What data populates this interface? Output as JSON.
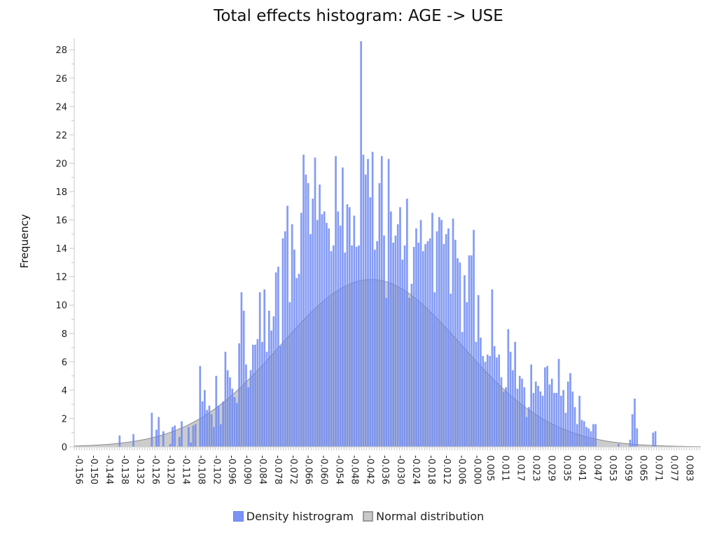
{
  "chart_data": {
    "type": "bar",
    "title": "Total effects histogram: AGE -> USE",
    "xlabel": "",
    "ylabel": "Frequency",
    "xlim": [
      -0.158,
      0.087
    ],
    "ylim": [
      0,
      28.8
    ],
    "grid": false,
    "legend_position": "bottom-center",
    "x_ticks": [
      "-0.156",
      "-0.150",
      "-0.144",
      "-0.138",
      "-0.132",
      "-0.126",
      "-0.120",
      "-0.114",
      "-0.108",
      "-0.102",
      "-0.096",
      "-0.090",
      "-0.084",
      "-0.078",
      "-0.072",
      "-0.066",
      "-0.060",
      "-0.054",
      "-0.048",
      "-0.042",
      "-0.036",
      "-0.030",
      "-0.024",
      "-0.018",
      "-0.012",
      "-0.006",
      "-0.000",
      "0.005",
      "0.011",
      "0.017",
      "0.023",
      "0.029",
      "0.035",
      "0.041",
      "0.047",
      "0.053",
      "0.059",
      "0.065",
      "0.071",
      "0.077",
      "0.083"
    ],
    "y_ticks": [
      0,
      2,
      4,
      6,
      8,
      10,
      12,
      14,
      16,
      18,
      20,
      22,
      24,
      26,
      28
    ],
    "series": [
      {
        "name": "Density histrogram",
        "color": "#6f8af2",
        "bin_start": -0.1577,
        "bin_width": 0.0009,
        "values": [
          0,
          0,
          0,
          0,
          0,
          0,
          0,
          0,
          0,
          0,
          0,
          0,
          0,
          0,
          0,
          0,
          0,
          0,
          0,
          0.8,
          0,
          0,
          0,
          0,
          0,
          0.9,
          0,
          0,
          0,
          0,
          0,
          0,
          0,
          2.4,
          0,
          1.2,
          2.1,
          0,
          1.1,
          0,
          0,
          0.2,
          1.4,
          1.5,
          0,
          0.7,
          1.8,
          0,
          0,
          1.4,
          0.3,
          1.5,
          1.6,
          0,
          5.7,
          3.2,
          4.0,
          2.6,
          2.9,
          2.3,
          1.4,
          5.0,
          2.9,
          1.6,
          3.2,
          6.7,
          5.4,
          4.9,
          4.1,
          3.5,
          3.1,
          7.3,
          10.9,
          9.6,
          5.8,
          4.2,
          5.4,
          7.2,
          7.2,
          7.6,
          10.9,
          7.4,
          11.1,
          6.7,
          9.6,
          8.2,
          9.2,
          12.3,
          12.7,
          7.1,
          14.7,
          15.2,
          17.0,
          10.2,
          15.7,
          13.9,
          11.9,
          12.2,
          16.5,
          20.6,
          19.2,
          18.6,
          15.0,
          17.5,
          20.4,
          16.0,
          18.5,
          16.4,
          16.6,
          15.8,
          15.4,
          13.8,
          14.2,
          20.5,
          16.6,
          15.6,
          19.7,
          13.7,
          17.1,
          16.9,
          14.2,
          16.3,
          14.1,
          14.2,
          28.6,
          20.6,
          19.2,
          20.3,
          17.6,
          20.8,
          13.9,
          14.5,
          18.6,
          20.5,
          14.9,
          10.5,
          20.3,
          16.6,
          14.4,
          14.9,
          15.7,
          16.9,
          13.2,
          14.2,
          17.5,
          10.5,
          11.5,
          14.1,
          15.4,
          14.4,
          16.0,
          13.8,
          14.3,
          14.5,
          14.7,
          16.5,
          10.9,
          15.2,
          16.2,
          16.0,
          14.3,
          15.0,
          15.4,
          10.8,
          16.1,
          14.6,
          13.3,
          13.0,
          8.1,
          12.1,
          10.2,
          13.5,
          13.5,
          15.3,
          7.4,
          10.7,
          7.7,
          6.4,
          6.0,
          6.5,
          6.4,
          11.1,
          7.1,
          6.3,
          6.5,
          4.9,
          3.9,
          4.2,
          8.3,
          6.7,
          5.4,
          7.4,
          4.1,
          5.0,
          4.8,
          4.2,
          2.1,
          2.8,
          5.8,
          3.8,
          4.6,
          4.3,
          3.9,
          3.6,
          5.6,
          5.7,
          4.4,
          4.8,
          3.8,
          3.8,
          6.2,
          3.6,
          4.0,
          2.4,
          4.6,
          5.2,
          3.9,
          2.8,
          1.6,
          3.6,
          1.9,
          1.8,
          1.4,
          1.3,
          1.1,
          1.6,
          1.6,
          0,
          0,
          0,
          0,
          0,
          0,
          0,
          0,
          0,
          0.2,
          0,
          0,
          0,
          0,
          0.5,
          2.3,
          3.4,
          1.3,
          0,
          0,
          0,
          0,
          0,
          0,
          1.0,
          1.1,
          0,
          0,
          0,
          0,
          0,
          0,
          0,
          0,
          0,
          0,
          0,
          0,
          0,
          0,
          0,
          0,
          0,
          0,
          0,
          0,
          0,
          0,
          0,
          0,
          0,
          0,
          0,
          0,
          0,
          0,
          0,
          0,
          0,
          0,
          0,
          0,
          0,
          0,
          0,
          0,
          0,
          0,
          0,
          0,
          0,
          0,
          0,
          0,
          0,
          0
        ]
      },
      {
        "name": "Normal distribution",
        "color": "#b9b9b9",
        "mean": -0.0418,
        "sd": 0.0355,
        "peak": 11.8
      }
    ]
  }
}
